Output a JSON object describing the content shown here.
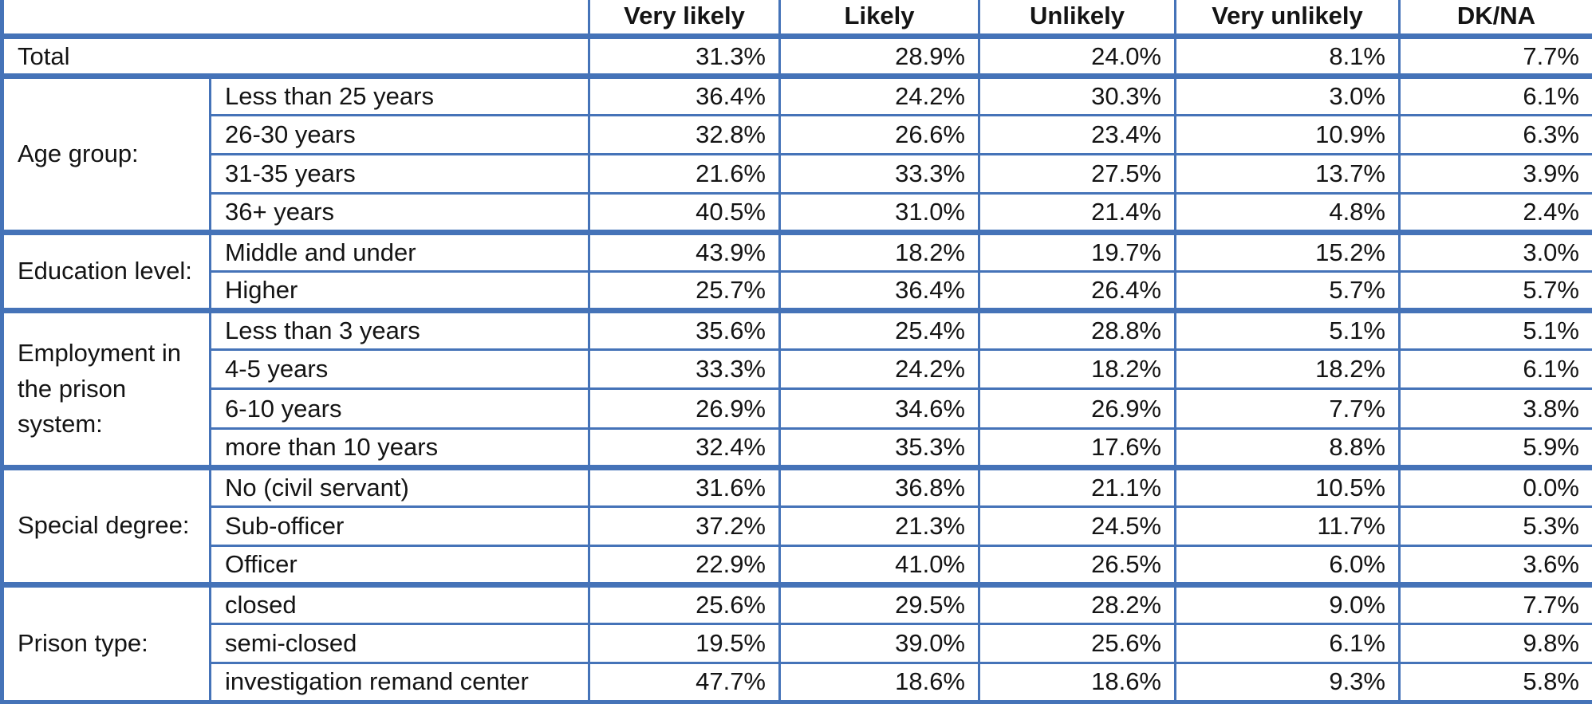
{
  "chart_data": {
    "type": "table",
    "column_headers": [
      "Very likely",
      "Likely",
      "Unlikely",
      "Very unlikely",
      "DK/NA"
    ],
    "total_row": {
      "label": "Total",
      "values": [
        "31.3%",
        "28.9%",
        "24.0%",
        "8.1%",
        "7.7%"
      ]
    },
    "groups": [
      {
        "label": "Age group:",
        "rows": [
          {
            "label": "Less than 25 years",
            "values": [
              "36.4%",
              "24.2%",
              "30.3%",
              "3.0%",
              "6.1%"
            ]
          },
          {
            "label": "26-30 years",
            "values": [
              "32.8%",
              "26.6%",
              "23.4%",
              "10.9%",
              "6.3%"
            ]
          },
          {
            "label": "31-35 years",
            "values": [
              "21.6%",
              "33.3%",
              "27.5%",
              "13.7%",
              "3.9%"
            ]
          },
          {
            "label": "36+ years",
            "values": [
              "40.5%",
              "31.0%",
              "21.4%",
              "4.8%",
              "2.4%"
            ]
          }
        ]
      },
      {
        "label": "Education level:",
        "rows": [
          {
            "label": "Middle and under",
            "values": [
              "43.9%",
              "18.2%",
              "19.7%",
              "15.2%",
              "3.0%"
            ]
          },
          {
            "label": "Higher",
            "values": [
              "25.7%",
              "36.4%",
              "26.4%",
              "5.7%",
              "5.7%"
            ]
          }
        ]
      },
      {
        "label": "Employment in the prison system:",
        "rows": [
          {
            "label": "Less than 3 years",
            "values": [
              "35.6%",
              "25.4%",
              "28.8%",
              "5.1%",
              "5.1%"
            ]
          },
          {
            "label": "4-5 years",
            "values": [
              "33.3%",
              "24.2%",
              "18.2%",
              "18.2%",
              "6.1%"
            ]
          },
          {
            "label": "6-10 years",
            "values": [
              "26.9%",
              "34.6%",
              "26.9%",
              "7.7%",
              "3.8%"
            ]
          },
          {
            "label": "more than 10 years",
            "values": [
              "32.4%",
              "35.3%",
              "17.6%",
              "8.8%",
              "5.9%"
            ]
          }
        ]
      },
      {
        "label": "Special degree:",
        "rows": [
          {
            "label": "No (civil servant)",
            "values": [
              "31.6%",
              "36.8%",
              "21.1%",
              "10.5%",
              "0.0%"
            ]
          },
          {
            "label": "Sub-officer",
            "values": [
              "37.2%",
              "21.3%",
              "24.5%",
              "11.7%",
              "5.3%"
            ]
          },
          {
            "label": "Officer",
            "values": [
              "22.9%",
              "41.0%",
              "26.5%",
              "6.0%",
              "3.6%"
            ]
          }
        ]
      },
      {
        "label": "Prison type:",
        "rows": [
          {
            "label": "closed",
            "values": [
              "25.6%",
              "29.5%",
              "28.2%",
              "9.0%",
              "7.7%"
            ]
          },
          {
            "label": "semi-closed",
            "values": [
              "19.5%",
              "39.0%",
              "25.6%",
              "6.1%",
              "9.8%"
            ]
          },
          {
            "label": "investigation remand center",
            "values": [
              "47.7%",
              "18.6%",
              "18.6%",
              "9.3%",
              "5.8%"
            ]
          }
        ]
      }
    ],
    "layout": {
      "border_color": "#4573B8",
      "grid": "on",
      "header_style": "bold-centered",
      "value_alignment": "right"
    }
  }
}
